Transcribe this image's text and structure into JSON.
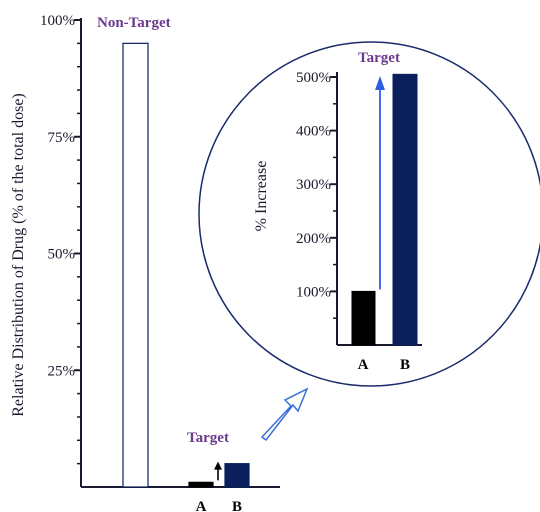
{
  "colors": {
    "axis": "#1a1a2e",
    "title": "#6b3a8c",
    "bar_a": "#000000",
    "bar_b": "#0a1f5c",
    "arrow": "#3a6fd8",
    "inset_arrow": "#2d5fe0",
    "circle": "#1a2a6c",
    "outline_bar": "#0a1f5c"
  },
  "chart_data": [
    {
      "type": "bar",
      "title": "Non-Target",
      "ylabel": "Relative Distribution of Drug (% of the total dose)",
      "yticks": [
        "100%",
        "75%",
        "50%",
        "25%"
      ],
      "ylim": [
        0,
        100
      ],
      "annotation": "Target",
      "categories": [
        "Non-Target",
        "A",
        "B"
      ],
      "values": [
        95,
        1,
        5
      ]
    },
    {
      "type": "bar",
      "title": "Target",
      "ylabel": "% Increase",
      "yticks": [
        "500%",
        "400%",
        "300%",
        "200%",
        "100%"
      ],
      "ylim": [
        0,
        550
      ],
      "categories": [
        "A",
        "B"
      ],
      "values": [
        100,
        505
      ]
    }
  ]
}
